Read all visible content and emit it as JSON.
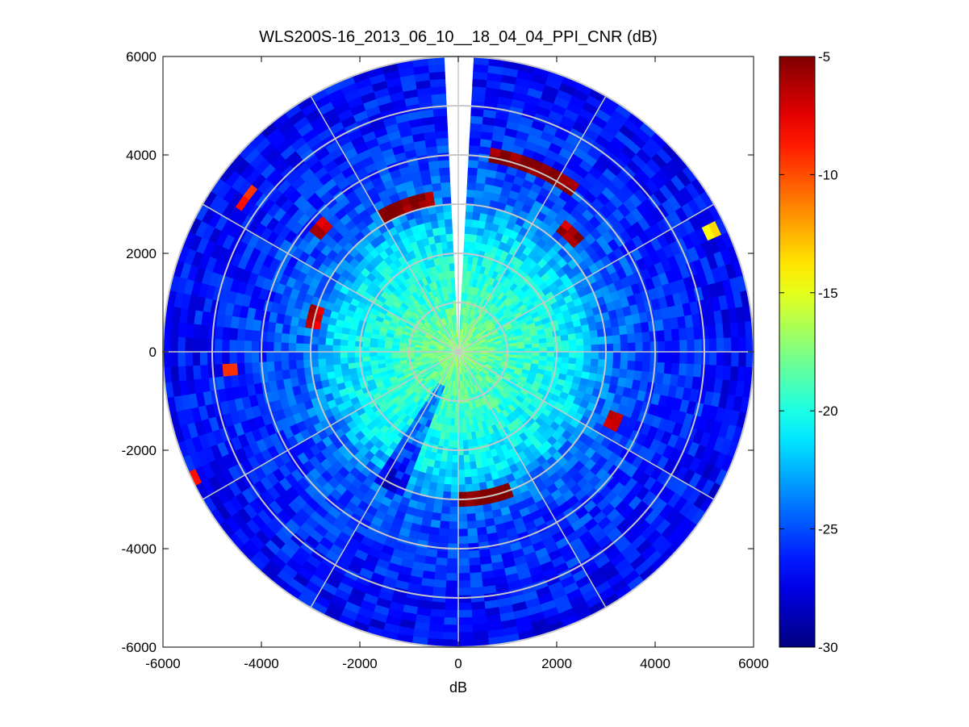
{
  "chart_data": {
    "type": "heatmap",
    "subtype": "polar-ppi",
    "title": "WLS200S-16_2013_06_10__18_04_04_PPI_CNR (dB)",
    "xlabel": "dB",
    "ylabel": "",
    "xlim": [
      -6000,
      6000
    ],
    "ylim": [
      -6000,
      6000
    ],
    "x_ticks": [
      -6000,
      -4000,
      -2000,
      0,
      2000,
      4000,
      6000
    ],
    "y_ticks": [
      -6000,
      -4000,
      -2000,
      0,
      2000,
      4000,
      6000
    ],
    "x_tick_labels": [
      "-6000",
      "-4000",
      "-2000",
      "0",
      "2000",
      "4000",
      "6000"
    ],
    "y_tick_labels": [
      "-6000",
      "-4000",
      "-2000",
      "0",
      "2000",
      "4000",
      "6000"
    ],
    "max_range": 6000,
    "range_rings": [
      1000,
      2000,
      3000,
      4000,
      5000,
      6000
    ],
    "radial_spokes_deg": [
      0,
      30,
      60,
      90,
      120,
      150,
      180,
      210,
      240,
      270,
      300,
      330
    ],
    "missing_sector_deg": [
      -4,
      4
    ],
    "colorbar": {
      "colormap": "jet",
      "clim": [
        -30,
        -5
      ],
      "ticks": [
        -5,
        -10,
        -15,
        -20,
        -25,
        -30
      ],
      "tick_labels": [
        "-5",
        "-10",
        "-15",
        "-20",
        "-25",
        "-30"
      ]
    },
    "cnr_profile_by_range": [
      {
        "range": 0,
        "value": -17
      },
      {
        "range": 1000,
        "value": -19
      },
      {
        "range": 2000,
        "value": -20.5
      },
      {
        "range": 2500,
        "value": -21.5
      },
      {
        "range": 3000,
        "value": -24
      },
      {
        "range": 4000,
        "value": -25.5
      },
      {
        "range": 6000,
        "value": -27
      }
    ],
    "hotspot_bands": [
      {
        "azimuth_deg": [
          -30,
          -8
        ],
        "range": [
          3050,
          3350
        ],
        "value": -5
      },
      {
        "azimuth_deg": [
          10,
          35
        ],
        "range": [
          3950,
          4200
        ],
        "value": -5
      },
      {
        "azimuth_deg": [
          40,
          48
        ],
        "range": [
          3200,
          3500
        ],
        "value": -6
      },
      {
        "azimuth_deg": [
          160,
          205
        ],
        "range": [
          2850,
          3100
        ],
        "value": -5
      },
      {
        "azimuth_deg": [
          112,
          118
        ],
        "range": [
          3300,
          3600
        ],
        "value": -6
      },
      {
        "azimuth_deg": [
          -52,
          -45
        ],
        "range": [
          3600,
          3900
        ],
        "value": -7
      },
      {
        "azimuth_deg": [
          -57,
          -52
        ],
        "range": [
          5200,
          5450
        ],
        "value": -8
      },
      {
        "azimuth_deg": [
          -96,
          -92
        ],
        "range": [
          4500,
          4750
        ],
        "value": -8
      },
      {
        "azimuth_deg": [
          -80,
          -72
        ],
        "range": [
          2850,
          3100
        ],
        "value": -7
      },
      {
        "azimuth_deg": [
          -118,
          -114
        ],
        "range": [
          5800,
          6000
        ],
        "value": -8
      },
      {
        "azimuth_deg": [
          62,
          66
        ],
        "range": [
          5500,
          5800
        ],
        "value": -13
      }
    ]
  }
}
